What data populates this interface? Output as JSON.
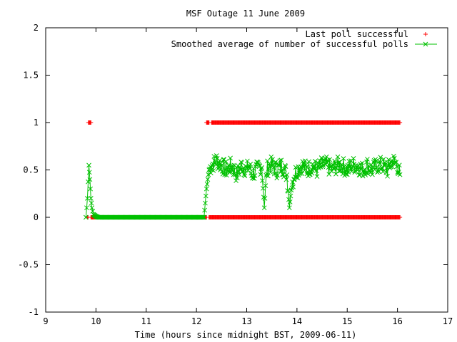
{
  "chart_data": {
    "type": "scatter",
    "title": "MSF Outage 11 June 2009",
    "xlabel": "Time (hours since midnight BST, 2009-06-11)",
    "ylabel": "",
    "xlim": [
      9,
      17
    ],
    "ylim": [
      -1,
      2
    ],
    "x_ticks": [
      9,
      10,
      11,
      12,
      13,
      14,
      15,
      16,
      17
    ],
    "x_tick_labels": [
      "9",
      "10",
      "11",
      "12",
      "13",
      "14",
      "15",
      "16",
      "17"
    ],
    "y_ticks": [
      -1,
      -0.5,
      0,
      0.5,
      1,
      1.5,
      2
    ],
    "y_tick_labels": [
      "-1",
      "-0.5",
      "0",
      "0.5",
      "1",
      "1.5",
      "2"
    ],
    "grid": false,
    "legend_position": "top-right",
    "series": [
      {
        "name": "Last poll successful",
        "style": "points",
        "marker": "plus",
        "color": "#ff0000",
        "segments_at_0": [
          [
            9.83,
            9.85
          ],
          [
            9.9,
            12.2
          ],
          [
            12.25,
            16.05
          ]
        ],
        "segments_at_1": [
          [
            9.85,
            9.9
          ],
          [
            12.2,
            12.25
          ],
          [
            12.3,
            16.05
          ]
        ],
        "x_step_hours": 0.0125
      },
      {
        "name": "Smoothed average of number of successful polls",
        "style": "linespoints",
        "marker": "cross",
        "color": "#00c000",
        "x_step_hours": 0.0125,
        "x": [
          9.8,
          9.83,
          9.86,
          9.88,
          9.9,
          9.92,
          9.95,
          10.0,
          10.05,
          10.1,
          10.2,
          11.0,
          12.15,
          12.2,
          12.25,
          12.3,
          12.4,
          12.5,
          12.6,
          12.7,
          12.8,
          12.9,
          13.0,
          13.05,
          13.1,
          13.2,
          13.3,
          13.35,
          13.4,
          13.45,
          13.5,
          13.6,
          13.7,
          13.8,
          13.85,
          13.9,
          13.95,
          14.0,
          14.1,
          14.2,
          14.3,
          14.4,
          14.5,
          14.6,
          14.7,
          14.8,
          14.9,
          15.0,
          15.1,
          15.2,
          15.3,
          15.4,
          15.5,
          15.6,
          15.7,
          15.8,
          15.9,
          16.0,
          16.05
        ],
        "y": [
          0.0,
          0.2,
          0.55,
          0.4,
          0.2,
          0.1,
          0.03,
          0.01,
          0.0,
          0.0,
          0.0,
          0.0,
          0.0,
          0.3,
          0.5,
          0.55,
          0.6,
          0.55,
          0.5,
          0.55,
          0.45,
          0.55,
          0.5,
          0.55,
          0.45,
          0.5,
          0.55,
          0.1,
          0.5,
          0.55,
          0.55,
          0.5,
          0.55,
          0.45,
          0.1,
          0.35,
          0.45,
          0.5,
          0.55,
          0.5,
          0.55,
          0.5,
          0.55,
          0.55,
          0.5,
          0.55,
          0.55,
          0.5,
          0.55,
          0.55,
          0.5,
          0.55,
          0.5,
          0.55,
          0.55,
          0.5,
          0.6,
          0.55,
          0.45
        ]
      }
    ]
  }
}
